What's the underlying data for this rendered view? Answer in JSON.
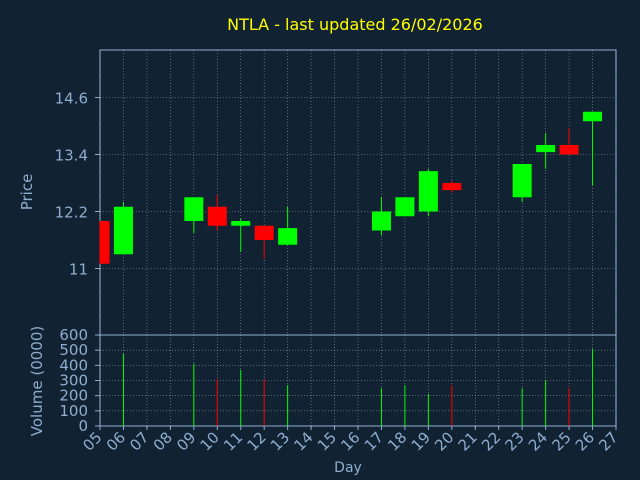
{
  "chart_data": [
    {
      "type": "candlestick",
      "title": "NTLA - last updated 26/02/2026",
      "ylabel": "Price",
      "ylim": [
        9.6,
        15.6
      ],
      "yticks": [
        11,
        12.2,
        13.4,
        14.6
      ],
      "ytick_labels": [
        "11",
        "12.2",
        "13.4",
        "14.6"
      ],
      "x": [
        "05",
        "06",
        "07",
        "08",
        "09",
        "10",
        "11",
        "12",
        "13",
        "14",
        "15",
        "16",
        "17",
        "18",
        "19",
        "20",
        "21",
        "22",
        "23",
        "24",
        "25",
        "26",
        "27"
      ],
      "grid": true,
      "colors": {
        "up": "#00ff00",
        "down": "#ff0000",
        "grid": "#ffffff",
        "text": "#8faecf",
        "title": "#ffff00",
        "background": "#112233"
      },
      "candles": [
        {
          "day": "05",
          "open": 12.0,
          "high": 12.0,
          "low": 11.1,
          "close": 11.1
        },
        {
          "day": "06",
          "open": 11.3,
          "high": 12.4,
          "low": 11.3,
          "close": 12.3
        },
        {
          "day": "09",
          "open": 12.0,
          "high": 12.5,
          "low": 11.75,
          "close": 12.5
        },
        {
          "day": "10",
          "open": 12.3,
          "high": 12.55,
          "low": 11.8,
          "close": 11.9
        },
        {
          "day": "11",
          "open": 11.9,
          "high": 12.05,
          "low": 11.35,
          "close": 12.0
        },
        {
          "day": "12",
          "open": 11.9,
          "high": 11.9,
          "low": 11.2,
          "close": 11.6
        },
        {
          "day": "13",
          "open": 11.5,
          "high": 12.3,
          "low": 11.5,
          "close": 11.85
        },
        {
          "day": "17",
          "open": 11.8,
          "high": 12.5,
          "low": 11.7,
          "close": 12.2
        },
        {
          "day": "18",
          "open": 12.1,
          "high": 12.5,
          "low": 12.1,
          "close": 12.5
        },
        {
          "day": "19",
          "open": 12.2,
          "high": 13.1,
          "low": 12.1,
          "close": 13.05
        },
        {
          "day": "20",
          "open": 12.8,
          "high": 12.85,
          "low": 12.6,
          "close": 12.65
        },
        {
          "day": "23",
          "open": 12.5,
          "high": 13.2,
          "low": 12.4,
          "close": 13.2
        },
        {
          "day": "24",
          "open": 13.45,
          "high": 13.85,
          "low": 13.1,
          "close": 13.6
        },
        {
          "day": "25",
          "open": 13.6,
          "high": 13.95,
          "low": 13.4,
          "close": 13.4
        },
        {
          "day": "26",
          "open": 14.1,
          "high": 14.3,
          "low": 12.75,
          "close": 14.3
        }
      ]
    },
    {
      "type": "bar",
      "ylabel": "Volume (0000)",
      "xlabel": "Day",
      "ylim": [
        0,
        600
      ],
      "yticks": [
        0,
        100,
        200,
        300,
        400,
        500,
        600
      ],
      "ytick_labels": [
        "0",
        "100",
        "200",
        "300",
        "400",
        "500",
        "600"
      ],
      "x": [
        "05",
        "06",
        "07",
        "08",
        "09",
        "10",
        "11",
        "12",
        "13",
        "14",
        "15",
        "16",
        "17",
        "18",
        "19",
        "20",
        "21",
        "22",
        "23",
        "24",
        "25",
        "26",
        "27"
      ],
      "bars": [
        {
          "day": "06",
          "value": 480,
          "direction": "up"
        },
        {
          "day": "09",
          "value": 410,
          "direction": "up"
        },
        {
          "day": "10",
          "value": 310,
          "direction": "down"
        },
        {
          "day": "11",
          "value": 370,
          "direction": "up"
        },
        {
          "day": "12",
          "value": 310,
          "direction": "down"
        },
        {
          "day": "13",
          "value": 270,
          "direction": "up"
        },
        {
          "day": "17",
          "value": 250,
          "direction": "up"
        },
        {
          "day": "18",
          "value": 270,
          "direction": "up"
        },
        {
          "day": "19",
          "value": 210,
          "direction": "up"
        },
        {
          "day": "20",
          "value": 270,
          "direction": "down"
        },
        {
          "day": "23",
          "value": 250,
          "direction": "up"
        },
        {
          "day": "24",
          "value": 300,
          "direction": "up"
        },
        {
          "day": "25",
          "value": 250,
          "direction": "down"
        },
        {
          "day": "26",
          "value": 510,
          "direction": "up"
        }
      ]
    }
  ]
}
